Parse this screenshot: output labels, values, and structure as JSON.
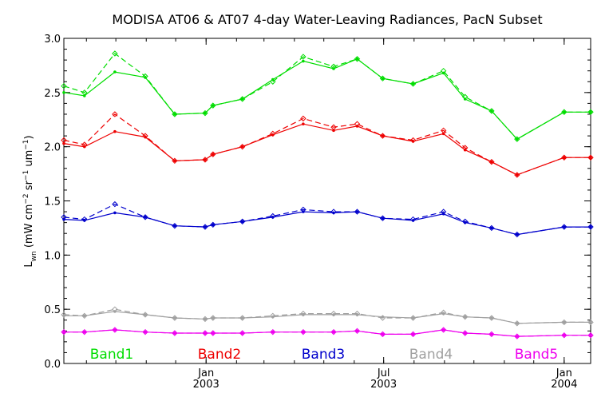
{
  "chart_data": {
    "type": "line",
    "title": "MODISA AT06 & AT07 4-day Water-Leaving Radiances, PacN Subset",
    "ylabel": {
      "main": "L",
      "sub": "wn",
      "units_open": " (mW cm",
      "exp1": "−2",
      "sr": " sr",
      "exp2": "−1",
      "um": " um",
      "exp3": "−1",
      "close": ")"
    },
    "ylim": [
      0.0,
      3.0
    ],
    "yticks": [
      0.0,
      0.5,
      1.0,
      1.5,
      2.0,
      2.5,
      3.0
    ],
    "ytick_labels": [
      "0.0",
      "0.5",
      "1.0",
      "1.5",
      "2.0",
      "2.5",
      "3.0"
    ],
    "xlim": [
      "2002-08-09",
      "2004-01-28"
    ],
    "xticks": [
      {
        "date": "2003-01-01",
        "label": "Jan",
        "year": "2003"
      },
      {
        "date": "2003-07-01",
        "label": "Jul",
        "year": "2003"
      },
      {
        "date": "2004-01-01",
        "label": "Jan",
        "year": "2004"
      }
    ],
    "x": [
      "2002-08-09",
      "2002-08-30",
      "2002-09-30",
      "2002-10-31",
      "2002-11-30",
      "2002-12-31",
      "2003-01-08",
      "2003-02-07",
      "2003-03-10",
      "2003-04-10",
      "2003-05-11",
      "2003-06-04",
      "2003-06-30",
      "2003-07-31",
      "2003-08-31",
      "2003-09-22",
      "2003-10-19",
      "2003-11-14",
      "2004-01-01",
      "2004-01-28"
    ],
    "series": [
      {
        "name": "Band1",
        "color": "#00dd00",
        "style": "solid",
        "values": [
          2.5,
          2.47,
          2.69,
          2.64,
          2.3,
          2.31,
          2.38,
          2.44,
          2.62,
          2.79,
          2.72,
          2.81,
          2.63,
          2.58,
          2.68,
          2.44,
          2.33,
          2.07,
          2.32,
          2.32
        ]
      },
      {
        "name": "Band1",
        "color": "#00dd00",
        "style": "dashed",
        "values": [
          2.56,
          2.5,
          2.86,
          2.65,
          2.3,
          2.31,
          2.38,
          2.44,
          2.6,
          2.83,
          2.74,
          2.81,
          2.63,
          2.58,
          2.7,
          2.46,
          2.33,
          2.07,
          2.32,
          2.32
        ]
      },
      {
        "name": "Band2",
        "color": "#ee0000",
        "style": "solid",
        "values": [
          2.03,
          2.0,
          2.14,
          2.09,
          1.87,
          1.88,
          1.93,
          2.0,
          2.11,
          2.21,
          2.15,
          2.19,
          2.1,
          2.05,
          2.12,
          1.97,
          1.86,
          1.74,
          1.9,
          1.9
        ]
      },
      {
        "name": "Band2",
        "color": "#ee0000",
        "style": "dashed",
        "values": [
          2.06,
          2.02,
          2.3,
          2.1,
          1.87,
          1.88,
          1.93,
          2.0,
          2.12,
          2.26,
          2.18,
          2.21,
          2.1,
          2.06,
          2.15,
          1.99,
          1.86,
          1.74,
          1.9,
          1.9
        ]
      },
      {
        "name": "Band3",
        "color": "#0000cc",
        "style": "solid",
        "values": [
          1.33,
          1.32,
          1.39,
          1.35,
          1.27,
          1.26,
          1.28,
          1.31,
          1.35,
          1.4,
          1.39,
          1.4,
          1.34,
          1.32,
          1.38,
          1.3,
          1.25,
          1.19,
          1.26,
          1.26
        ]
      },
      {
        "name": "Band3",
        "color": "#0000cc",
        "style": "dashed",
        "values": [
          1.35,
          1.33,
          1.47,
          1.35,
          1.27,
          1.26,
          1.28,
          1.31,
          1.36,
          1.42,
          1.4,
          1.4,
          1.34,
          1.33,
          1.4,
          1.31,
          1.25,
          1.19,
          1.26,
          1.26
        ]
      },
      {
        "name": "Band4",
        "color": "#a0a0a0",
        "style": "solid",
        "values": [
          0.44,
          0.44,
          0.48,
          0.45,
          0.42,
          0.41,
          0.42,
          0.42,
          0.43,
          0.45,
          0.45,
          0.45,
          0.43,
          0.42,
          0.46,
          0.43,
          0.42,
          0.37,
          0.38,
          0.38
        ]
      },
      {
        "name": "Band4",
        "color": "#a0a0a0",
        "style": "dashed",
        "values": [
          0.45,
          0.44,
          0.5,
          0.45,
          0.42,
          0.41,
          0.42,
          0.42,
          0.44,
          0.46,
          0.46,
          0.46,
          0.42,
          0.42,
          0.47,
          0.43,
          0.42,
          0.37,
          0.38,
          0.38
        ]
      },
      {
        "name": "Band5",
        "color": "#ee00ee",
        "style": "solid",
        "values": [
          0.29,
          0.29,
          0.31,
          0.29,
          0.28,
          0.28,
          0.28,
          0.28,
          0.29,
          0.29,
          0.29,
          0.3,
          0.27,
          0.27,
          0.31,
          0.28,
          0.27,
          0.25,
          0.26,
          0.26
        ]
      },
      {
        "name": "Band5",
        "color": "#ee00ee",
        "style": "dashed",
        "values": [
          0.29,
          0.29,
          0.31,
          0.29,
          0.28,
          0.28,
          0.28,
          0.28,
          0.29,
          0.29,
          0.29,
          0.3,
          0.27,
          0.27,
          0.31,
          0.28,
          0.27,
          0.25,
          0.26,
          0.26
        ]
      }
    ],
    "legend": [
      {
        "label": "Band1",
        "color": "#00dd00"
      },
      {
        "label": "Band2",
        "color": "#ee0000"
      },
      {
        "label": "Band3",
        "color": "#0000cc"
      },
      {
        "label": "Band4",
        "color": "#a0a0a0"
      },
      {
        "label": "Band5",
        "color": "#ee00ee"
      }
    ],
    "legend_position": "bottom-inside",
    "grid": false
  }
}
